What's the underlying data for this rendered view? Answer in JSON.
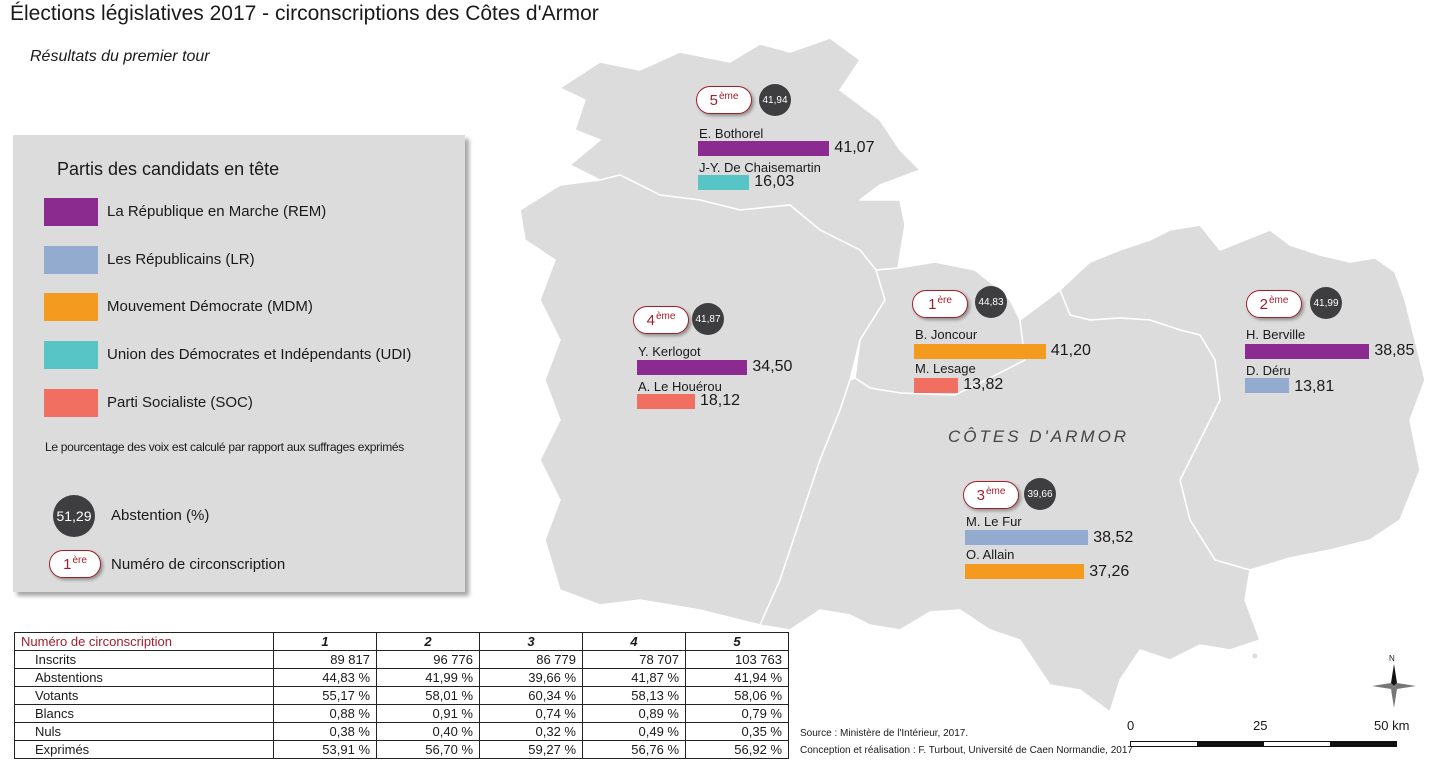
{
  "title": "Élections législatives 2017 - circonscriptions des Côtes d'Armor",
  "subtitle": "Résultats du premier tour",
  "colors": {
    "REM": "#8b2a8f",
    "LR": "#92abcf",
    "MDM": "#f39a1f",
    "UDI": "#57c5c6",
    "SOC": "#f16f61"
  },
  "legend": {
    "title": "Partis des candidats en tête",
    "parties": [
      {
        "key": "REM",
        "label": "La République en Marche (REM)"
      },
      {
        "key": "LR",
        "label": "Les Républicains (LR)"
      },
      {
        "key": "MDM",
        "label": "Mouvement Démocrate (MDM)"
      },
      {
        "key": "UDI",
        "label": "Union des Démocrates et Indépendants (UDI)"
      },
      {
        "key": "SOC",
        "label": "Parti Socialiste (SOC)"
      }
    ],
    "note": "Le pourcentage des voix est calculé par rapport aux suffrages exprimés",
    "abstention_example": "51,29",
    "abstention_label": "Abstention (%)",
    "circ_example_num": "1",
    "circ_example_sup": "ère",
    "circ_label": "Numéro de circonscription"
  },
  "map": {
    "department_label": "CÔTES D'ARMOR",
    "circonscriptions": [
      {
        "num": "5",
        "sup": "ème",
        "abstention": "41,94",
        "candidates": [
          {
            "name": "E. Bothorel",
            "party": "REM",
            "value": 41.07,
            "label": "41,07"
          },
          {
            "name": "J-Y. De Chaisemartin",
            "party": "UDI",
            "value": 16.03,
            "label": "16,03"
          }
        ]
      },
      {
        "num": "4",
        "sup": "ème",
        "abstention": "41,87",
        "candidates": [
          {
            "name": "Y. Kerlogot",
            "party": "REM",
            "value": 34.5,
            "label": "34,50"
          },
          {
            "name": "A. Le Houérou",
            "party": "SOC",
            "value": 18.12,
            "label": "18,12"
          }
        ]
      },
      {
        "num": "1",
        "sup": "ère",
        "abstention": "44,83",
        "candidates": [
          {
            "name": "B. Joncour",
            "party": "MDM",
            "value": 41.2,
            "label": "41,20"
          },
          {
            "name": "M. Lesage",
            "party": "SOC",
            "value": 13.82,
            "label": "13,82"
          }
        ]
      },
      {
        "num": "2",
        "sup": "ème",
        "abstention": "41,99",
        "candidates": [
          {
            "name": "H. Berville",
            "party": "REM",
            "value": 38.85,
            "label": "38,85"
          },
          {
            "name": "D. Déru",
            "party": "LR",
            "value": 13.81,
            "label": "13,81"
          }
        ]
      },
      {
        "num": "3",
        "sup": "ème",
        "abstention": "39,66",
        "candidates": [
          {
            "name": "M. Le Fur",
            "party": "LR",
            "value": 38.52,
            "label": "38,52"
          },
          {
            "name": "O. Allain",
            "party": "MDM",
            "value": 37.26,
            "label": "37,26"
          }
        ]
      }
    ]
  },
  "table": {
    "header_label": "Numéro de circonscription",
    "columns": [
      "1",
      "2",
      "3",
      "4",
      "5"
    ],
    "rows": [
      {
        "label": "Inscrits",
        "values": [
          "89 817",
          "96 776",
          "86 779",
          "78 707",
          "103 763"
        ]
      },
      {
        "label": "Abstentions",
        "values": [
          "44,83 %",
          "41,99 %",
          "39,66 %",
          "41,87 %",
          "41,94 %"
        ]
      },
      {
        "label": "Votants",
        "values": [
          "55,17 %",
          "58,01 %",
          "60,34 %",
          "58,13 %",
          "58,06 %"
        ]
      },
      {
        "label": "Blancs",
        "values": [
          "0,88 %",
          "0,91 %",
          "0,74 %",
          "0,89 %",
          "0,79 %"
        ]
      },
      {
        "label": "Nuls",
        "values": [
          "0,38 %",
          "0,40 %",
          "0,32 %",
          "0,49 %",
          "0,35 %"
        ]
      },
      {
        "label": "Exprimés",
        "values": [
          "53,91 %",
          "56,70 %",
          "59,27 %",
          "56,76 %",
          "56,92 %"
        ]
      }
    ]
  },
  "source": {
    "line1": "Source : Ministère de l'Intérieur, 2017.",
    "line2": "Conception et réalisation : F. Turbout, Université de Caen Normandie, 2017"
  },
  "scale": {
    "labels": [
      "0",
      "25",
      "50 km"
    ]
  },
  "north_label": "N"
}
